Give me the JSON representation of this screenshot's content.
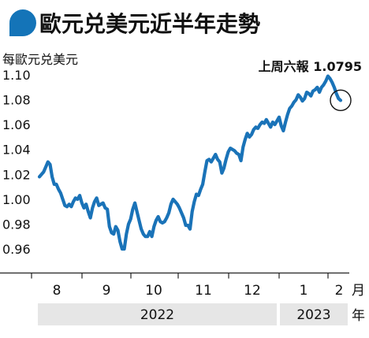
{
  "header": {
    "title": "歐元兑美元近半年走勢",
    "badge_color": "#1474b8"
  },
  "chart_data": {
    "type": "line",
    "title": "歐元兑美元近半年走勢",
    "ylabel": "每歐元兑美元",
    "xlabel": "",
    "ylim": [
      0.94,
      1.11
    ],
    "yticks": [
      0.96,
      0.98,
      1.0,
      1.02,
      1.04,
      1.06,
      1.08,
      1.1
    ],
    "ytick_labels": [
      "0.96",
      "0.98",
      "1.00",
      "1.02",
      "1.04",
      "1.06",
      "1.08",
      "1.10"
    ],
    "x_unit_month": "月",
    "x_unit_year": "年",
    "months": [
      "8",
      "9",
      "10",
      "11",
      "12",
      "1",
      "2"
    ],
    "years": [
      {
        "label": "2022",
        "from_month": "8",
        "to_month": "12"
      },
      {
        "label": "2023",
        "from_month": "1",
        "to_month": "2"
      }
    ],
    "latest_label": "上周六報 1.0795",
    "latest_value": 1.0795,
    "line_color": "#1a73b8",
    "year_band_color": "#e6e6e6",
    "grid": false,
    "series": [
      {
        "values": [
          1.018,
          1.02,
          1.022,
          1.026,
          1.03,
          1.028,
          1.018,
          1.012,
          1.012,
          1.008,
          1.005,
          1.0,
          0.995,
          0.994,
          0.996,
          0.994,
          0.998,
          1.001,
          1.0,
          1.003,
          0.997,
          0.993,
          0.996,
          0.99,
          0.985,
          0.993,
          0.998,
          1.001,
          0.995,
          0.996,
          0.997,
          0.993,
          0.992,
          0.978,
          0.973,
          0.972,
          0.978,
          0.975,
          0.966,
          0.96,
          0.96,
          0.972,
          0.98,
          0.984,
          0.992,
          0.997,
          0.99,
          0.983,
          0.976,
          0.972,
          0.97,
          0.97,
          0.974,
          0.97,
          0.978,
          0.983,
          0.986,
          0.982,
          0.981,
          0.982,
          0.985,
          0.989,
          0.996,
          1.0,
          0.998,
          0.996,
          0.993,
          0.989,
          0.985,
          0.979,
          0.979,
          0.976,
          0.99,
          0.998,
          1.004,
          1.003,
          1.008,
          1.012,
          1.022,
          1.031,
          1.032,
          1.03,
          1.033,
          1.036,
          1.032,
          1.03,
          1.021,
          1.025,
          1.032,
          1.038,
          1.041,
          1.04,
          1.039,
          1.037,
          1.036,
          1.031,
          1.042,
          1.048,
          1.053,
          1.05,
          1.052,
          1.056,
          1.058,
          1.057,
          1.06,
          1.062,
          1.061,
          1.064,
          1.061,
          1.058,
          1.062,
          1.06,
          1.063,
          1.066,
          1.059,
          1.055,
          1.062,
          1.068,
          1.073,
          1.075,
          1.078,
          1.08,
          1.084,
          1.082,
          1.079,
          1.081,
          1.086,
          1.085,
          1.083,
          1.087,
          1.088,
          1.09,
          1.086,
          1.09,
          1.092,
          1.095,
          1.099,
          1.097,
          1.094,
          1.09,
          1.085,
          1.081,
          1.0795
        ]
      }
    ]
  }
}
